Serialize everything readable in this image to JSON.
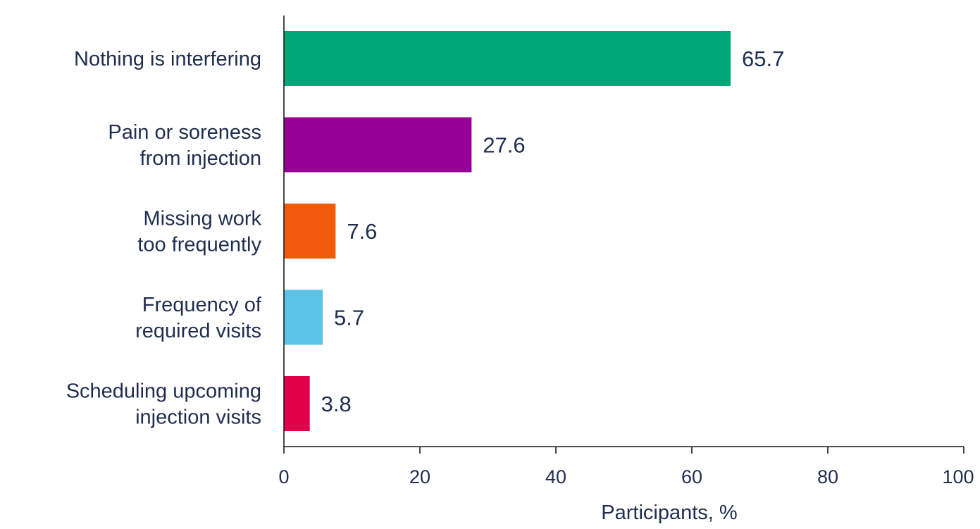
{
  "chart_data": {
    "type": "bar",
    "orientation": "horizontal",
    "categories": [
      [
        "Nothing is interfering"
      ],
      [
        "Pain or soreness",
        "from injection"
      ],
      [
        "Missing work",
        "too frequently"
      ],
      [
        "Frequency of",
        "required visits"
      ],
      [
        "Scheduling upcoming",
        "injection visits"
      ]
    ],
    "values": [
      65.7,
      27.6,
      7.6,
      5.7,
      3.8
    ],
    "value_labels": [
      "65.7",
      "27.6",
      "7.6",
      "5.7",
      "3.8"
    ],
    "colors": [
      "#00a878",
      "#960094",
      "#f05a0a",
      "#5bc4e6",
      "#e2004b"
    ],
    "xlabel": "Participants, %",
    "xlim": [
      0,
      100
    ],
    "xticks": [
      0,
      20,
      40,
      60,
      80,
      100
    ],
    "xtick_labels": [
      "0",
      "20",
      "40",
      "60",
      "80",
      "100"
    ],
    "grid": false,
    "legend": "none"
  }
}
